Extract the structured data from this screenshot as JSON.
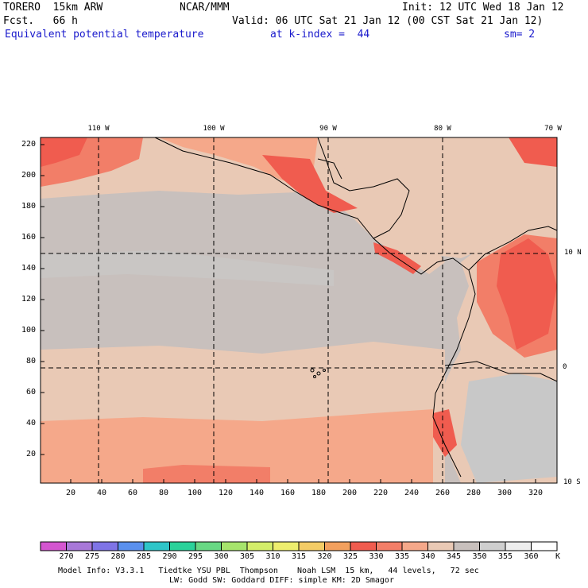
{
  "header": {
    "model": "TORERO  15km ARW",
    "org": "NCAR/MMM",
    "init": "Init: 12 UTC Wed 18 Jan 12",
    "fcst": "Fcst.   66 h",
    "valid": "Valid: 06 UTC Sat 21 Jan 12 (00 CST Sat 21 Jan 12)",
    "field": "Equivalent potential temperature",
    "level": "at k-index =  44",
    "smooth": "sm= 2"
  },
  "map": {
    "lon_labels": [
      "110 W",
      "100 W",
      "90 W",
      "80 W",
      "70 W"
    ],
    "lat_labels": [
      "10 N",
      "0",
      "10 S"
    ],
    "y_ticks": [
      "220",
      "200",
      "180",
      "160",
      "140",
      "120",
      "100",
      "80",
      "60",
      "40",
      "20"
    ],
    "x_ticks": [
      "20",
      "40",
      "60",
      "80",
      "100",
      "120",
      "140",
      "160",
      "180",
      "200",
      "220",
      "240",
      "260",
      "280",
      "300",
      "320"
    ],
    "colors": {
      "ocean_mid": "#c8c0bd",
      "ocean_light": "#e9c9b5",
      "salmon": "#f5a88a",
      "red": "#f05c4f",
      "gray_land": "#c8c8c8"
    }
  },
  "colorbar": {
    "labels": [
      "270",
      "275",
      "280",
      "285",
      "290",
      "295",
      "300",
      "305",
      "310",
      "315",
      "320",
      "325",
      "330",
      "335",
      "340",
      "345",
      "350",
      "355",
      "360"
    ],
    "unit": "K",
    "colors": [
      "#d456d0",
      "#a878d8",
      "#7f74e6",
      "#5a90ee",
      "#2ec5c8",
      "#2ad29a",
      "#68d884",
      "#a6e46c",
      "#d4ee6a",
      "#eeee6e",
      "#f4cc66",
      "#f2a05e",
      "#f05c4f",
      "#f27e68",
      "#f5a88a",
      "#e9c9b5",
      "#c8c0bd",
      "#cfcfcf",
      "#eeeeee",
      "#ffffff"
    ]
  },
  "footer": {
    "line1": "Model Info: V3.3.1   Tiedtke YSU PBL  Thompson    Noah LSM  15 km,   44 levels,   72 sec",
    "line2": "LW: Godd SW: Goddard DIFF: simple KM: 2D Smagor"
  }
}
